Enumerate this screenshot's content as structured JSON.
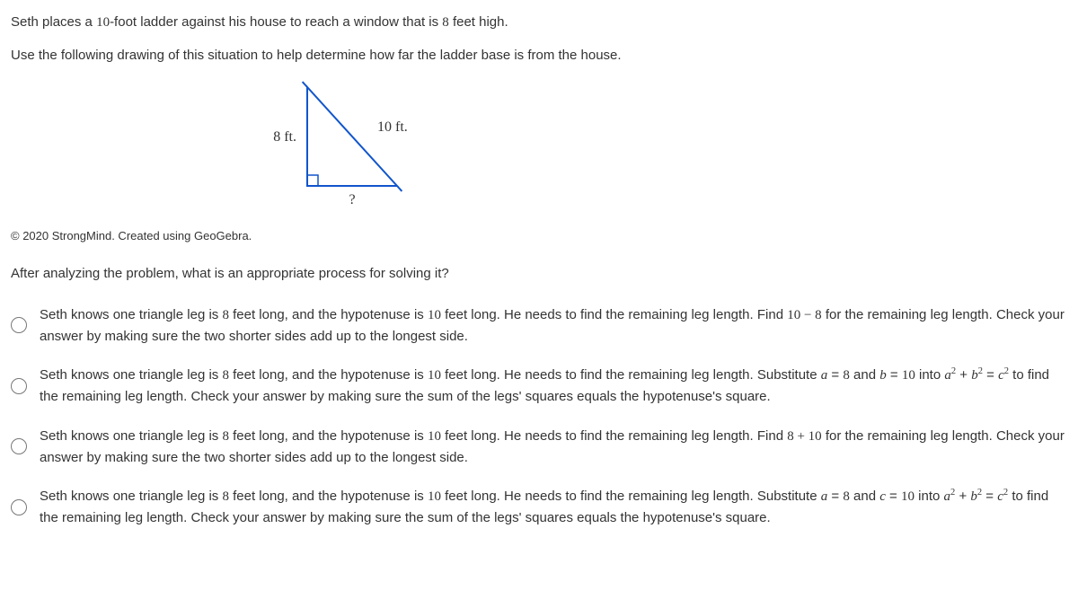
{
  "intro": {
    "line1_pre": "Seth places a ",
    "line1_num1": "10",
    "line1_mid": "-foot ladder against his house to reach a window that is ",
    "line1_num2": "8",
    "line1_post": " feet high.",
    "line2": "Use the following drawing of this situation to help determine how far the ladder base is from the house."
  },
  "figure": {
    "label_left": "8 ft.",
    "label_hyp": "10 ft.",
    "label_base": "?",
    "stroke": "#1155cc",
    "stroke_width": 2,
    "points": {
      "A": [
        60,
        10
      ],
      "B": [
        60,
        120
      ],
      "C": [
        160,
        120
      ]
    },
    "square_size": 12,
    "label_fontsize": 16,
    "label_color": "#333"
  },
  "credit": "© 2020 StrongMind. Created using GeoGebra.",
  "prompt": "After analyzing the problem, what is an appropriate process for solving it?",
  "choices": [
    {
      "parts": [
        {
          "t": "Seth knows one triangle leg is "
        },
        {
          "n": "8"
        },
        {
          "t": " feet long, and the hypotenuse is "
        },
        {
          "n": "10"
        },
        {
          "t": " feet long. He needs to find the remaining leg length. Find "
        },
        {
          "n": "10 − 8"
        },
        {
          "t": " for the remaining leg length. Check your answer by making sure the two shorter sides add up to the longest side."
        }
      ]
    },
    {
      "parts": [
        {
          "t": "Seth knows one triangle leg is "
        },
        {
          "n": "8"
        },
        {
          "t": " feet long, and the hypotenuse is "
        },
        {
          "n": "10"
        },
        {
          "t": " feet long. He needs to find the remaining leg length. Substitute "
        },
        {
          "v": "a"
        },
        {
          "t": " = "
        },
        {
          "n": "8"
        },
        {
          "t": " and "
        },
        {
          "v": "b"
        },
        {
          "t": " = "
        },
        {
          "n": "10"
        },
        {
          "t": " into "
        },
        {
          "v": "a"
        },
        {
          "s": "2"
        },
        {
          "t": " + "
        },
        {
          "v": "b"
        },
        {
          "s": "2"
        },
        {
          "t": " = "
        },
        {
          "v": "c"
        },
        {
          "s": "2"
        },
        {
          "t": " to find the remaining leg length. Check your answer by making sure the sum of the legs' squares equals the hypotenuse's square."
        }
      ]
    },
    {
      "parts": [
        {
          "t": "Seth knows one triangle leg is "
        },
        {
          "n": "8"
        },
        {
          "t": " feet long, and the hypotenuse is "
        },
        {
          "n": "10"
        },
        {
          "t": " feet long. He needs to find the remaining leg length. Find "
        },
        {
          "n": "8 + 10"
        },
        {
          "t": " for the remaining leg length. Check your answer by making sure the two shorter sides add up to the longest side."
        }
      ]
    },
    {
      "parts": [
        {
          "t": "Seth knows one triangle leg is "
        },
        {
          "n": "8"
        },
        {
          "t": " feet long, and the hypotenuse is "
        },
        {
          "n": "10"
        },
        {
          "t": " feet long. He needs to find the remaining leg length. Substitute "
        },
        {
          "v": "a"
        },
        {
          "t": " = "
        },
        {
          "n": "8"
        },
        {
          "t": " and "
        },
        {
          "v": "c"
        },
        {
          "t": " = "
        },
        {
          "n": "10"
        },
        {
          "t": " into "
        },
        {
          "v": "a"
        },
        {
          "s": "2"
        },
        {
          "t": " + "
        },
        {
          "v": "b"
        },
        {
          "s": "2"
        },
        {
          "t": " = "
        },
        {
          "v": "c"
        },
        {
          "s": "2"
        },
        {
          "t": " to find the remaining leg length. Check your answer by making sure the sum of the legs' squares equals the hypotenuse's square."
        }
      ]
    }
  ]
}
